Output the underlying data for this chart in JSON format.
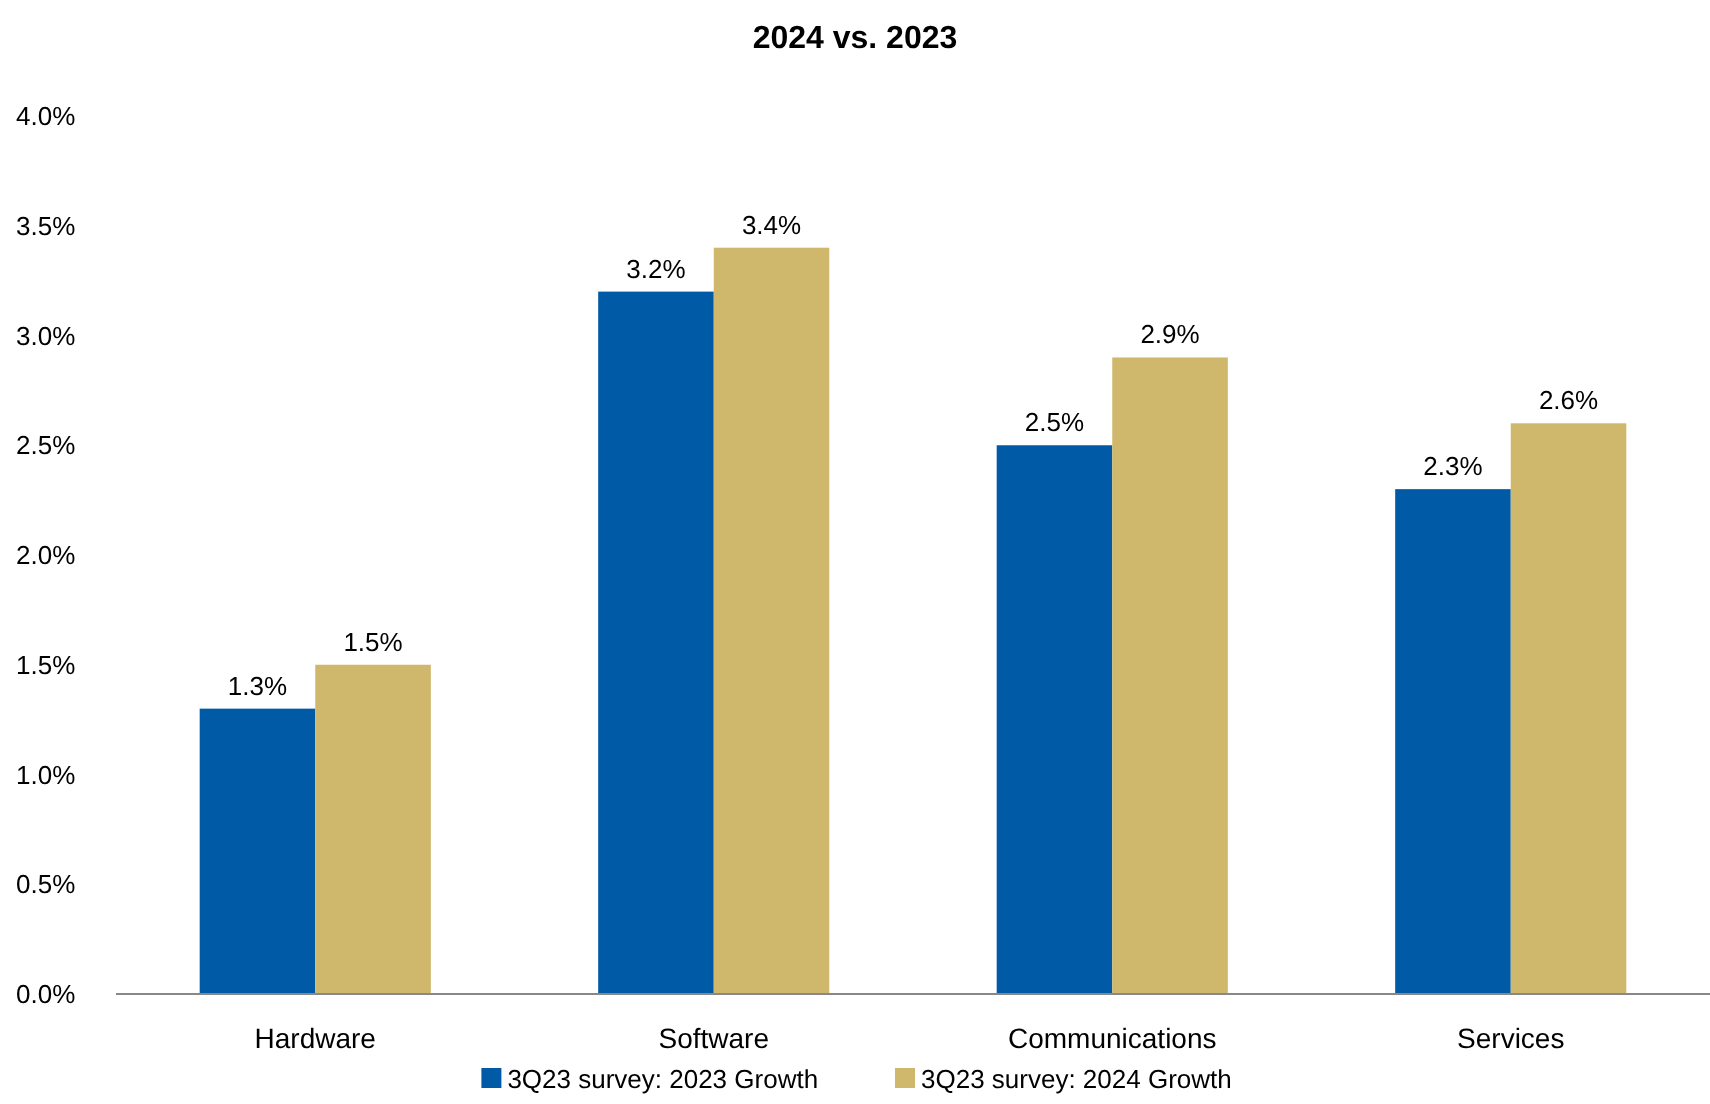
{
  "chart_data": {
    "type": "bar",
    "title": "2024 vs. 2023",
    "categories": [
      "Hardware",
      "Software",
      "Communications",
      "Services"
    ],
    "series": [
      {
        "name": "3Q23 survey: 2023 Growth",
        "color": "#005aa6",
        "values": [
          1.3,
          3.2,
          2.5,
          2.3
        ],
        "value_labels": [
          "1.3%",
          "3.2%",
          "2.5%",
          "2.3%"
        ]
      },
      {
        "name": "3Q23 survey: 2024 Growth",
        "color": "#cfb86b",
        "values": [
          1.5,
          3.4,
          2.9,
          2.6
        ],
        "value_labels": [
          "1.5%",
          "3.4%",
          "2.9%",
          "2.6%"
        ]
      }
    ],
    "ylim": [
      0,
      4
    ],
    "yticks": [
      {
        "value": 0,
        "label": "0.0%"
      },
      {
        "value": 0.5,
        "label": "0.5%"
      },
      {
        "value": 1,
        "label": "1.0%"
      },
      {
        "value": 1.5,
        "label": "1.5%"
      },
      {
        "value": 2,
        "label": "2.0%"
      },
      {
        "value": 2.5,
        "label": "2.5%"
      },
      {
        "value": 3,
        "label": "3.0%"
      },
      {
        "value": 3.5,
        "label": "3.5%"
      },
      {
        "value": 4,
        "label": "4.0%"
      }
    ],
    "grid": false,
    "legend": "bottom"
  }
}
